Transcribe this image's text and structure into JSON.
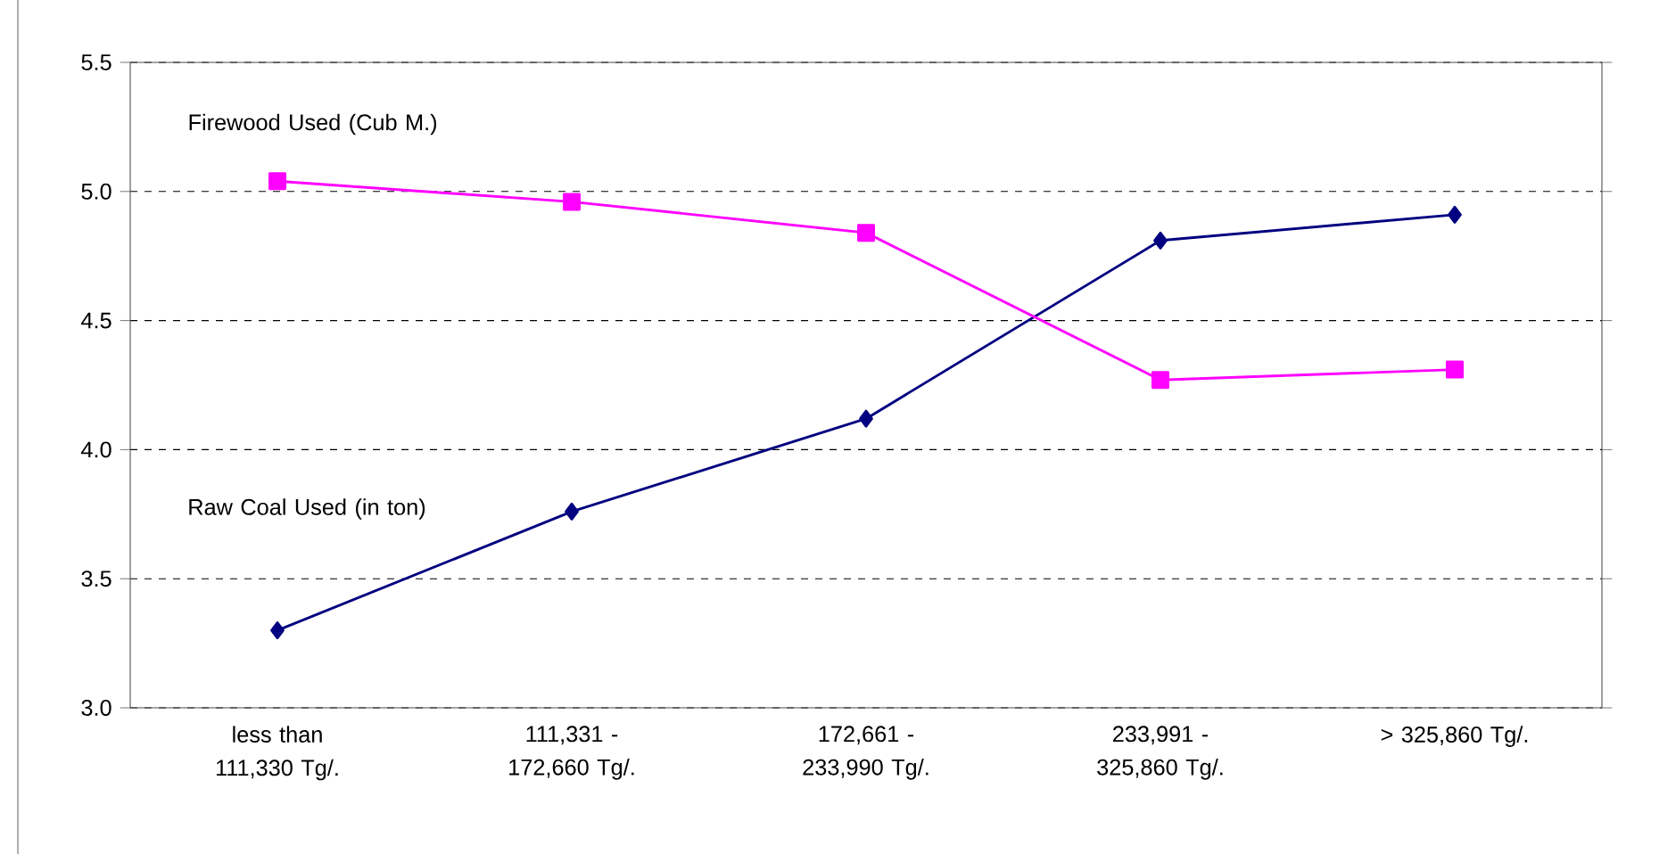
{
  "chart_data": {
    "type": "line",
    "categories": [
      "less than 111,330 Tg/.",
      "111,331 - 172,660 Tg/.",
      "172,661 - 233,990 Tg/.",
      "233,991 - 325,860 Tg/.",
      "> 325,860 Tg/."
    ],
    "series": [
      {
        "name": "Raw Coal Used (in ton)",
        "color": "#000080",
        "marker": "diamond",
        "values": [
          3.3,
          3.76,
          4.12,
          4.81,
          4.91
        ]
      },
      {
        "name": "Firewood Used (Cub M.)",
        "color": "#ff00ff",
        "marker": "square",
        "values": [
          5.04,
          4.96,
          4.84,
          4.27,
          4.31
        ]
      }
    ],
    "ylim": [
      3.0,
      5.5
    ],
    "yticks": [
      {
        "value": 3,
        "label": "3.0"
      },
      3.5,
      {
        "value": 4,
        "label": "4.0"
      },
      4.5,
      {
        "value": 5,
        "label": "5.0"
      },
      5.5
    ],
    "grid": "y",
    "legend": false
  }
}
